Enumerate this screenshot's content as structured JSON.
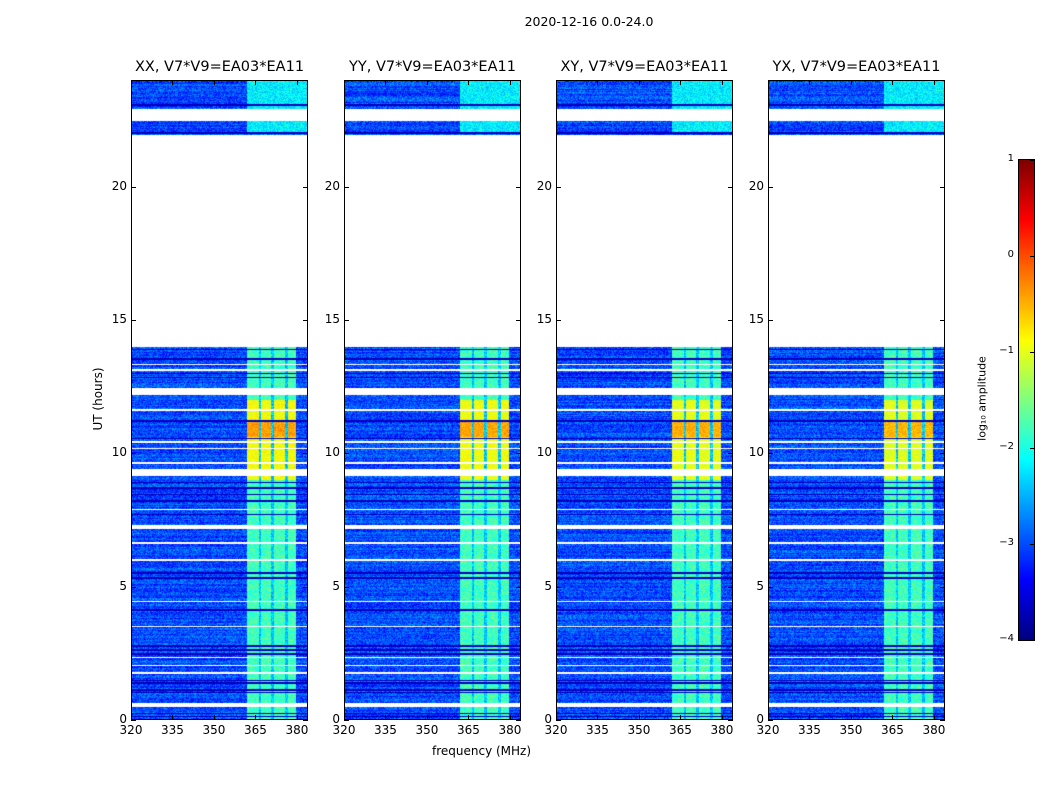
{
  "figure": {
    "suptitle": "2020-12-16 0.0-24.0",
    "xlabel": "frequency (MHz)",
    "ylabel": "UT (hours)"
  },
  "chart_data": {
    "type": "heatmap",
    "panels": [
      {
        "title": "XX, V7*V9=EA03*EA11",
        "strength": 1.0
      },
      {
        "title": "YY, V7*V9=EA03*EA11",
        "strength": 0.95
      },
      {
        "title": "XY, V7*V9=EA03*EA11",
        "strength": 0.9
      },
      {
        "title": "YX, V7*V9=EA03*EA11",
        "strength": 0.85
      }
    ],
    "xlim": [
      320,
      384
    ],
    "ylim": [
      0,
      24
    ],
    "xticks": [
      320,
      335,
      350,
      365,
      380
    ],
    "xtick_labels": [
      "320",
      "335",
      "350",
      "365",
      "380"
    ],
    "yticks": [
      0,
      5,
      10,
      15,
      20
    ],
    "ytick_labels": [
      "0",
      "5",
      "10",
      "15",
      "20"
    ],
    "background_log_amp": -3.0,
    "rfi_band_mhz": [
      362,
      380
    ],
    "rfi_channels_mhz": [
      [
        362,
        366.5
      ],
      [
        367,
        371
      ],
      [
        372,
        376
      ],
      [
        377,
        380.5
      ]
    ],
    "rfi_band_log_amp": -2.1,
    "rfi_strong_hours": [
      9.0,
      12.0
    ],
    "rfi_strong_log_amp": -0.9,
    "flagged_hours": [
      [
        14.0,
        21.95
      ],
      [
        22.5,
        22.95
      ],
      [
        12.2,
        12.45
      ],
      [
        9.15,
        9.4
      ],
      [
        7.15,
        7.3
      ],
      [
        0.45,
        0.6
      ],
      [
        2.3,
        2.35
      ],
      [
        3.45,
        3.5
      ],
      [
        4.4,
        4.45
      ],
      [
        5.95,
        6.0
      ],
      [
        6.6,
        6.65
      ],
      [
        7.85,
        7.9
      ],
      [
        9.6,
        9.65
      ],
      [
        10.15,
        10.2
      ],
      [
        10.4,
        10.45
      ],
      [
        11.6,
        11.65
      ],
      [
        13.1,
        13.15
      ],
      [
        13.3,
        13.35
      ],
      [
        1.7,
        1.75
      ],
      [
        2.0,
        2.05
      ]
    ],
    "dark_rows_hours": [
      13.9,
      13.55,
      13.0,
      12.85,
      11.2,
      10.55,
      8.9,
      8.7,
      8.45,
      8.2,
      7.7,
      5.5,
      5.3,
      4.1,
      2.75,
      2.6,
      2.45,
      1.45,
      1.35,
      1.1,
      1.0,
      0.2,
      0.1,
      22.05,
      23.1
    ],
    "colorbar": {
      "label": "log₁₀ amplitude",
      "range": [
        -4,
        1
      ],
      "ticks": [
        1,
        0,
        -1,
        -2,
        -3,
        -4
      ],
      "tick_labels": [
        "1",
        "0",
        "−1",
        "−2",
        "−3",
        "−4"
      ]
    }
  }
}
